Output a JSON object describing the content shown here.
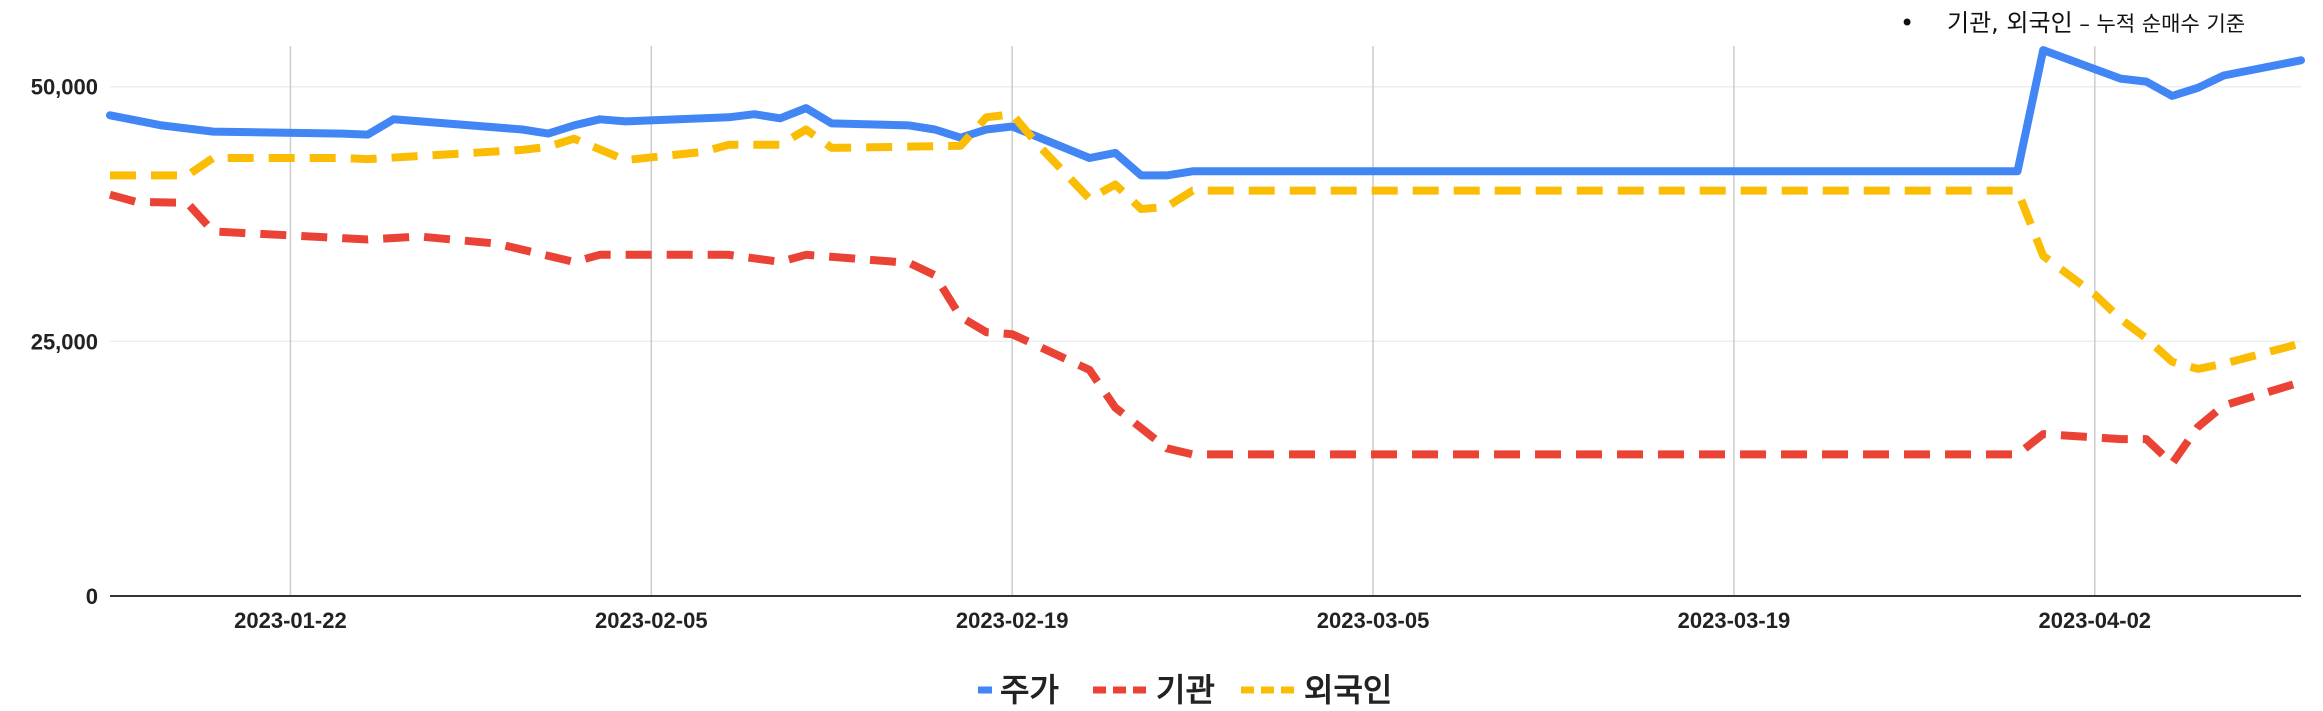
{
  "annotation": {
    "bullet": "•",
    "main": "기관, 외국인",
    "sub": " – 누적 순매수 기준"
  },
  "chart_data": {
    "type": "line",
    "title": "",
    "xlabel": "",
    "ylabel": "",
    "x_range": [
      "2023-01-15",
      "2023-04-10"
    ],
    "ylim": [
      0,
      54000
    ],
    "y_ticks": [
      0,
      25000,
      50000
    ],
    "y_tick_labels": [
      "0",
      "25,000",
      "50,000"
    ],
    "x_ticks": [
      "2023-01-22",
      "2023-02-05",
      "2023-02-19",
      "2023-03-05",
      "2023-03-19",
      "2023-04-02"
    ],
    "grid": {
      "vertical": true,
      "horizontal": true
    },
    "legend": "bottom",
    "series": [
      {
        "name": "주가",
        "color": "#4285f4",
        "dash": "solid",
        "points": [
          [
            "2023-01-15",
            47200
          ],
          [
            "2023-01-17",
            46200
          ],
          [
            "2023-01-19",
            45600
          ],
          [
            "2023-01-24",
            45400
          ],
          [
            "2023-01-25",
            45300
          ],
          [
            "2023-01-26",
            46800
          ],
          [
            "2023-01-31",
            45800
          ],
          [
            "2023-02-01",
            45400
          ],
          [
            "2023-02-02",
            46200
          ],
          [
            "2023-02-03",
            46800
          ],
          [
            "2023-02-04",
            46600
          ],
          [
            "2023-02-08",
            47000
          ],
          [
            "2023-02-09",
            47300
          ],
          [
            "2023-02-10",
            46900
          ],
          [
            "2023-02-11",
            47900
          ],
          [
            "2023-02-12",
            46400
          ],
          [
            "2023-02-15",
            46200
          ],
          [
            "2023-02-16",
            45800
          ],
          [
            "2023-02-17",
            45000
          ],
          [
            "2023-02-18",
            45800
          ],
          [
            "2023-02-19",
            46100
          ],
          [
            "2023-02-22",
            43000
          ],
          [
            "2023-02-23",
            43500
          ],
          [
            "2023-02-24",
            41300
          ],
          [
            "2023-02-25",
            41300
          ],
          [
            "2023-02-26",
            41700
          ],
          [
            "2023-03-30",
            41700
          ],
          [
            "2023-03-31",
            53600
          ],
          [
            "2023-04-03",
            50800
          ],
          [
            "2023-04-04",
            50500
          ],
          [
            "2023-04-05",
            49100
          ],
          [
            "2023-04-06",
            49900
          ],
          [
            "2023-04-07",
            51100
          ],
          [
            "2023-04-10",
            52600
          ]
        ]
      },
      {
        "name": "기관",
        "color": "#ea4335",
        "dash": "dashed",
        "points": [
          [
            "2023-01-15",
            39400
          ],
          [
            "2023-01-16",
            38700
          ],
          [
            "2023-01-18",
            38600
          ],
          [
            "2023-01-19",
            35800
          ],
          [
            "2023-01-22",
            35400
          ],
          [
            "2023-01-25",
            35000
          ],
          [
            "2023-01-27",
            35300
          ],
          [
            "2023-01-30",
            34600
          ],
          [
            "2023-01-31",
            34000
          ],
          [
            "2023-02-02",
            32800
          ],
          [
            "2023-02-03",
            33500
          ],
          [
            "2023-02-08",
            33500
          ],
          [
            "2023-02-10",
            32800
          ],
          [
            "2023-02-11",
            33500
          ],
          [
            "2023-02-15",
            32700
          ],
          [
            "2023-02-16",
            31500
          ],
          [
            "2023-02-17",
            27400
          ],
          [
            "2023-02-18",
            25900
          ],
          [
            "2023-02-19",
            25700
          ],
          [
            "2023-02-22",
            22200
          ],
          [
            "2023-02-23",
            18500
          ],
          [
            "2023-02-25",
            14500
          ],
          [
            "2023-02-26",
            13900
          ],
          [
            "2023-03-30",
            13900
          ],
          [
            "2023-03-31",
            15900
          ],
          [
            "2023-04-03",
            15400
          ],
          [
            "2023-04-04",
            15400
          ],
          [
            "2023-04-05",
            13000
          ],
          [
            "2023-04-06",
            16600
          ],
          [
            "2023-04-07",
            18700
          ],
          [
            "2023-04-10",
            21000
          ]
        ]
      },
      {
        "name": "외국인",
        "color": "#fbbc04",
        "dash": "dashed",
        "points": [
          [
            "2023-01-15",
            41300
          ],
          [
            "2023-01-18",
            41300
          ],
          [
            "2023-01-19",
            43000
          ],
          [
            "2023-01-24",
            43000
          ],
          [
            "2023-01-25",
            42900
          ],
          [
            "2023-01-31",
            43800
          ],
          [
            "2023-02-01",
            44100
          ],
          [
            "2023-02-02",
            44900
          ],
          [
            "2023-02-04",
            42800
          ],
          [
            "2023-02-07",
            43600
          ],
          [
            "2023-02-08",
            44300
          ],
          [
            "2023-02-10",
            44300
          ],
          [
            "2023-02-11",
            45800
          ],
          [
            "2023-02-12",
            44000
          ],
          [
            "2023-02-17",
            44200
          ],
          [
            "2023-02-18",
            47000
          ],
          [
            "2023-02-19",
            47300
          ],
          [
            "2023-02-20",
            44300
          ],
          [
            "2023-02-22",
            39000
          ],
          [
            "2023-02-23",
            40400
          ],
          [
            "2023-02-24",
            38000
          ],
          [
            "2023-02-25",
            38200
          ],
          [
            "2023-02-26",
            39800
          ],
          [
            "2023-03-30",
            39800
          ],
          [
            "2023-03-31",
            33400
          ],
          [
            "2023-04-02",
            29600
          ],
          [
            "2023-04-03",
            27200
          ],
          [
            "2023-04-04",
            25300
          ],
          [
            "2023-04-05",
            23000
          ],
          [
            "2023-04-06",
            22300
          ],
          [
            "2023-04-07",
            22800
          ],
          [
            "2023-04-10",
            24800
          ]
        ]
      }
    ]
  }
}
